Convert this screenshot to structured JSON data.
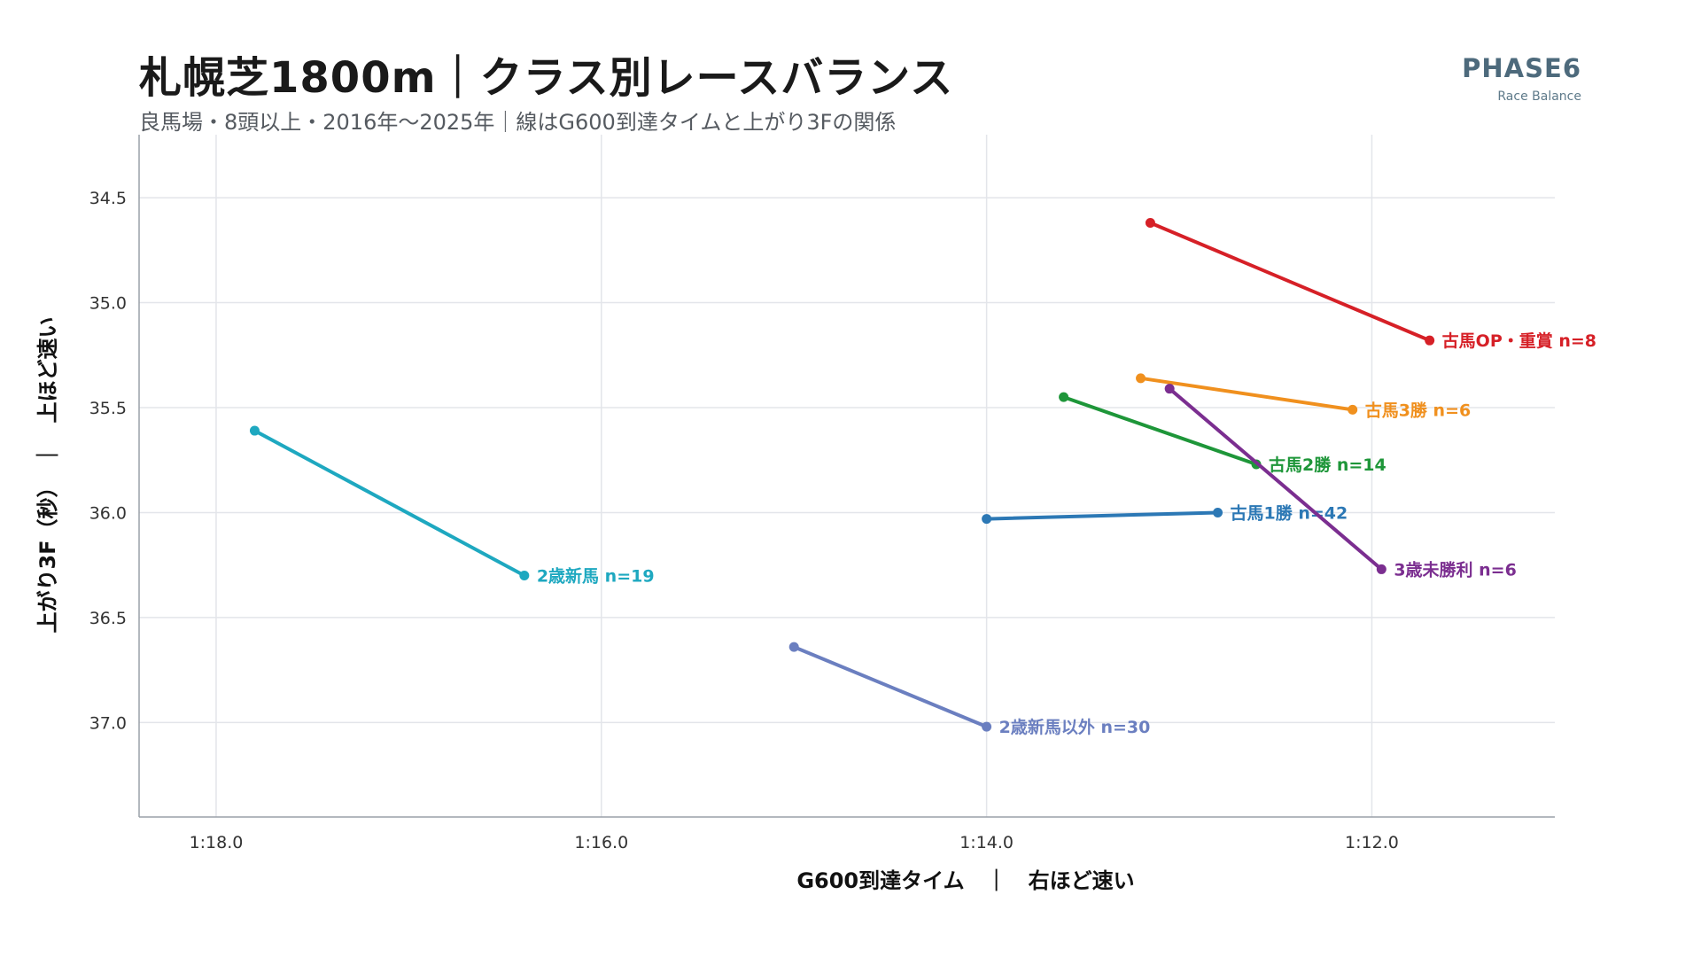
{
  "header": {
    "title": "札幌芝1800m｜クラス別レースバランス",
    "subtitle": "良馬場・8頭以上・2016年〜2025年｜線はG600到達タイムと上がり3Fの関係",
    "brand": "PHASE6",
    "brand_sub": "Race Balance"
  },
  "chart_data": {
    "type": "line",
    "title": "札幌芝1800m｜クラス別レースバランス",
    "subtitle": "良馬場・8頭以上・2016年〜2025年｜線はG600到達タイムと上がり3Fの関係",
    "xlabel": "G600到達タイム　｜　右ほど速い",
    "ylabel": "上がり3F（秒）　｜　上ほど速い",
    "x_unit": "seconds (shown as m:ss.s)",
    "xlim": [
      78.4,
      71.05
    ],
    "ylim": [
      37.45,
      34.2
    ],
    "x_reversed": true,
    "y_reversed": true,
    "x_ticks": [
      78.0,
      76.0,
      74.0,
      72.0
    ],
    "x_tick_labels": [
      "1:18.0",
      "1:16.0",
      "1:14.0",
      "1:12.0"
    ],
    "y_ticks": [
      34.5,
      35.0,
      35.5,
      36.0,
      36.5,
      37.0
    ],
    "y_tick_labels": [
      "34.5",
      "35.0",
      "35.5",
      "36.0",
      "36.5",
      "37.0"
    ],
    "grid": true,
    "series": [
      {
        "label": "古馬OP・重賞  n=8",
        "color": "#d62027",
        "points": [
          [
            73.15,
            34.62
          ],
          [
            71.7,
            35.18
          ]
        ]
      },
      {
        "label": "古馬3勝  n=6",
        "color": "#f0901e",
        "points": [
          [
            73.2,
            35.36
          ],
          [
            72.1,
            35.51
          ]
        ]
      },
      {
        "label": "古馬2勝  n=14",
        "color": "#1e9639",
        "points": [
          [
            73.6,
            35.45
          ],
          [
            72.6,
            35.77
          ]
        ]
      },
      {
        "label": "古馬1勝  n=42",
        "color": "#2c78b5",
        "points": [
          [
            74.0,
            36.03
          ],
          [
            72.8,
            36.0
          ]
        ]
      },
      {
        "label": "3歳未勝利  n=6",
        "color": "#7b2e90",
        "points": [
          [
            73.05,
            35.41
          ],
          [
            71.95,
            36.27
          ]
        ]
      },
      {
        "label": "2歳新馬  n=19",
        "color": "#1ea8c0",
        "points": [
          [
            77.8,
            35.61
          ],
          [
            76.4,
            36.3
          ]
        ]
      },
      {
        "label": "2歳新馬以外  n=30",
        "color": "#6b7fc0",
        "points": [
          [
            75.0,
            36.64
          ],
          [
            74.0,
            37.02
          ]
        ]
      }
    ]
  }
}
